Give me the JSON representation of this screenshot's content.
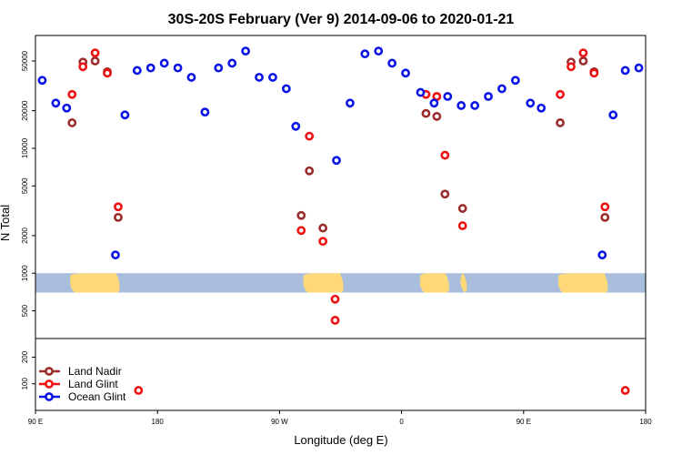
{
  "chart_data": {
    "type": "scatter",
    "title": "30S-20S February (Ver 9)   2014-09-06 to 2020-01-21",
    "xlabel": "Longitude (deg E)",
    "ylabel": "N Total",
    "x_ticks": [
      {
        "value": 90,
        "label": "90 E"
      },
      {
        "value": 180,
        "label": "180"
      },
      {
        "value": 270,
        "label": "90 W"
      },
      {
        "value": 360,
        "label": "0"
      },
      {
        "value": 450,
        "label": "90 E"
      },
      {
        "value": 540,
        "label": "180"
      }
    ],
    "xlim": [
      90,
      540
    ],
    "upper_panel": {
      "scale": "log",
      "ylim": [
        300,
        80000
      ],
      "y_ticks": [
        {
          "value": 500,
          "label": "500"
        },
        {
          "value": 1000,
          "label": "1000"
        },
        {
          "value": 2000,
          "label": "2000"
        },
        {
          "value": 5000,
          "label": "5000"
        },
        {
          "value": 10000,
          "label": "10000"
        },
        {
          "value": 20000,
          "label": "20000"
        },
        {
          "value": 50000,
          "label": "50000"
        }
      ]
    },
    "lower_panel": {
      "scale": "linear",
      "ylim": [
        0,
        270
      ],
      "y_ticks": [
        {
          "value": 100,
          "label": "100"
        },
        {
          "value": 200,
          "label": "200"
        }
      ]
    },
    "map_band": {
      "y_from": 700,
      "y_to": 1000,
      "ocean_color": "#a8bedc",
      "land_color": "#ffd978"
    },
    "legend": {
      "position": "bottom-left"
    },
    "series": [
      {
        "name": "Land Nadir",
        "color": "#9b2c2c",
        "points": [
          [
            117,
            16000
          ],
          [
            125,
            49000
          ],
          [
            134,
            50000
          ],
          [
            143,
            41000
          ],
          [
            151,
            2800
          ],
          [
            286,
            2900
          ],
          [
            292,
            6600
          ],
          [
            302,
            2300
          ],
          [
            378,
            19000
          ],
          [
            386,
            18000
          ],
          [
            392,
            4300
          ],
          [
            405,
            3300
          ],
          [
            477,
            16000
          ],
          [
            485,
            49000
          ],
          [
            494,
            50000
          ],
          [
            502,
            41000
          ],
          [
            510,
            2800
          ]
        ]
      },
      {
        "name": "Land Glint",
        "color": "#ee1111",
        "points": [
          [
            117,
            27000
          ],
          [
            125,
            45000
          ],
          [
            134,
            58000
          ],
          [
            143,
            40000
          ],
          [
            151,
            3400
          ],
          [
            166,
            75
          ],
          [
            286,
            2200
          ],
          [
            292,
            12500
          ],
          [
            302,
            1800
          ],
          [
            311,
            620
          ],
          [
            311,
            420
          ],
          [
            378,
            27000
          ],
          [
            386,
            26000
          ],
          [
            392,
            8800
          ],
          [
            405,
            2400
          ],
          [
            477,
            27000
          ],
          [
            485,
            45000
          ],
          [
            494,
            58000
          ],
          [
            502,
            40000
          ],
          [
            510,
            3400
          ],
          [
            525,
            75
          ]
        ]
      },
      {
        "name": "Ocean Glint",
        "color": "#0a14e6",
        "points": [
          [
            95,
            35000
          ],
          [
            105,
            23000
          ],
          [
            113,
            21000
          ],
          [
            149,
            1400
          ],
          [
            156,
            18500
          ],
          [
            165,
            42000
          ],
          [
            175,
            44000
          ],
          [
            185,
            48000
          ],
          [
            195,
            44000
          ],
          [
            205,
            37000
          ],
          [
            215,
            19500
          ],
          [
            225,
            44000
          ],
          [
            235,
            48000
          ],
          [
            245,
            60000
          ],
          [
            255,
            37000
          ],
          [
            265,
            37000
          ],
          [
            275,
            30000
          ],
          [
            282,
            15000
          ],
          [
            312,
            8000
          ],
          [
            322,
            23000
          ],
          [
            333,
            57000
          ],
          [
            343,
            60000
          ],
          [
            353,
            48000
          ],
          [
            363,
            40000
          ],
          [
            374,
            28000
          ],
          [
            384,
            23000
          ],
          [
            394,
            26000
          ],
          [
            404,
            22000
          ],
          [
            414,
            22000
          ],
          [
            424,
            26000
          ],
          [
            434,
            30000
          ],
          [
            444,
            35000
          ],
          [
            455,
            23000
          ],
          [
            463,
            21000
          ],
          [
            508,
            1400
          ],
          [
            516,
            18500
          ],
          [
            525,
            42000
          ],
          [
            535,
            44000
          ]
        ]
      }
    ]
  }
}
